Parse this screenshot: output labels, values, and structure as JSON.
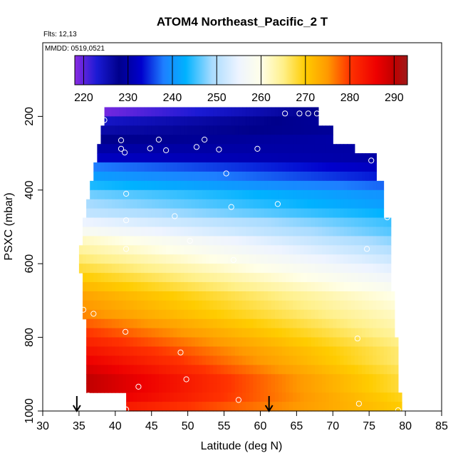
{
  "title": "ATOM4 Northeast_Pacific_2 T",
  "flights_label": "Flts: 12,13",
  "date_label": "MMDD: 0519,0521",
  "colorbar": {
    "ticks": [
      220,
      230,
      240,
      250,
      260,
      270,
      280,
      290
    ],
    "tick_labels": [
      "220",
      "230",
      "240",
      "250",
      "260",
      "270",
      "280",
      "290"
    ],
    "range": [
      218,
      293
    ],
    "colors": [
      {
        "v": 218,
        "c": "#8a2be2"
      },
      {
        "v": 223,
        "c": "#1a1ad4"
      },
      {
        "v": 228,
        "c": "#00008b"
      },
      {
        "v": 233,
        "c": "#0000cd"
      },
      {
        "v": 238,
        "c": "#1e7fff"
      },
      {
        "v": 243,
        "c": "#00b2ff"
      },
      {
        "v": 249,
        "c": "#aadcff"
      },
      {
        "v": 255,
        "c": "#eef4ff"
      },
      {
        "v": 260,
        "c": "#ffffe8"
      },
      {
        "v": 265,
        "c": "#fff08a"
      },
      {
        "v": 270,
        "c": "#ffcc00"
      },
      {
        "v": 275,
        "c": "#ff9900"
      },
      {
        "v": 280,
        "c": "#ff3300"
      },
      {
        "v": 286,
        "c": "#ee0000"
      },
      {
        "v": 290,
        "c": "#c00000"
      },
      {
        "v": 293,
        "c": "#9e1a1a"
      }
    ]
  },
  "chart_data": {
    "type": "heatmap",
    "title": "ATOM4 Northeast_Pacific_2 T",
    "xlabel": "Latitude (deg N)",
    "ylabel": "PSXC (mbar)",
    "xlim": [
      30,
      85
    ],
    "ylim": [
      1000,
      0
    ],
    "x_ticks": [
      30,
      35,
      40,
      45,
      50,
      55,
      60,
      65,
      70,
      75,
      80,
      85
    ],
    "x_tick_labels": [
      "30",
      "35",
      "40",
      "45",
      "50",
      "55",
      "60",
      "65",
      "70",
      "75",
      "80",
      "85"
    ],
    "y_ticks": [
      200,
      400,
      600,
      800,
      1000
    ],
    "y_tick_labels": [
      "200",
      "400",
      "600",
      "800",
      "1000"
    ],
    "colorbar_unit": "T",
    "rows": [
      {
        "p": 187.5,
        "lat_min": 38.5,
        "lat_max": 68,
        "t_start": 219,
        "t_end": 228
      },
      {
        "p": 212.5,
        "lat_min": 38.5,
        "lat_max": 68,
        "t_start": 224,
        "t_end": 229
      },
      {
        "p": 237.5,
        "lat_min": 38,
        "lat_max": 70,
        "t_start": 226,
        "t_end": 229
      },
      {
        "p": 262.5,
        "lat_min": 38,
        "lat_max": 70,
        "t_start": 228,
        "t_end": 230
      },
      {
        "p": 287.5,
        "lat_min": 37.5,
        "lat_max": 73,
        "t_start": 230,
        "t_end": 230
      },
      {
        "p": 312.5,
        "lat_min": 37.5,
        "lat_max": 76,
        "t_start": 232,
        "t_end": 230
      },
      {
        "p": 337.5,
        "lat_min": 37,
        "lat_max": 76,
        "t_start": 238,
        "t_end": 232
      },
      {
        "p": 362.5,
        "lat_min": 37,
        "lat_max": 76,
        "t_start": 241,
        "t_end": 234
      },
      {
        "p": 387.5,
        "lat_min": 36.5,
        "lat_max": 77,
        "t_start": 244,
        "t_end": 237
      },
      {
        "p": 412.5,
        "lat_min": 36.5,
        "lat_max": 77,
        "t_start": 247,
        "t_end": 240
      },
      {
        "p": 437.5,
        "lat_min": 36,
        "lat_max": 77,
        "t_start": 249,
        "t_end": 241
      },
      {
        "p": 462.5,
        "lat_min": 36,
        "lat_max": 77,
        "t_start": 251,
        "t_end": 243
      },
      {
        "p": 487.5,
        "lat_min": 35.5,
        "lat_max": 78,
        "t_start": 255,
        "t_end": 245
      },
      {
        "p": 512.5,
        "lat_min": 35.5,
        "lat_max": 78,
        "t_start": 258,
        "t_end": 246
      },
      {
        "p": 537.5,
        "lat_min": 35.5,
        "lat_max": 78,
        "t_start": 262,
        "t_end": 248
      },
      {
        "p": 562.5,
        "lat_min": 35,
        "lat_max": 78,
        "t_start": 264,
        "t_end": 250
      },
      {
        "p": 587.5,
        "lat_min": 35,
        "lat_max": 78,
        "t_start": 266,
        "t_end": 252
      },
      {
        "p": 612.5,
        "lat_min": 35,
        "lat_max": 78,
        "t_start": 268,
        "t_end": 254
      },
      {
        "p": 637.5,
        "lat_min": 35.5,
        "lat_max": 78,
        "t_start": 270,
        "t_end": 256
      },
      {
        "p": 662.5,
        "lat_min": 35.5,
        "lat_max": 78,
        "t_start": 272,
        "t_end": 258
      },
      {
        "p": 687.5,
        "lat_min": 35.5,
        "lat_max": 78.5,
        "t_start": 274,
        "t_end": 260
      },
      {
        "p": 712.5,
        "lat_min": 35.5,
        "lat_max": 78.5,
        "t_start": 275,
        "t_end": 261
      },
      {
        "p": 737.5,
        "lat_min": 35.5,
        "lat_max": 78.5,
        "t_start": 276,
        "t_end": 262
      },
      {
        "p": 762.5,
        "lat_min": 36,
        "lat_max": 78.5,
        "t_start": 278,
        "t_end": 263
      },
      {
        "p": 787.5,
        "lat_min": 36,
        "lat_max": 78.5,
        "t_start": 280,
        "t_end": 264
      },
      {
        "p": 812.5,
        "lat_min": 36,
        "lat_max": 79,
        "t_start": 282,
        "t_end": 265
      },
      {
        "p": 837.5,
        "lat_min": 36,
        "lat_max": 79,
        "t_start": 284,
        "t_end": 266
      },
      {
        "p": 862.5,
        "lat_min": 36,
        "lat_max": 79,
        "t_start": 286,
        "t_end": 266
      },
      {
        "p": 887.5,
        "lat_min": 36,
        "lat_max": 79,
        "t_start": 288,
        "t_end": 267
      },
      {
        "p": 912.5,
        "lat_min": 36,
        "lat_max": 79,
        "t_start": 290,
        "t_end": 268
      },
      {
        "p": 937.5,
        "lat_min": 36,
        "lat_max": 79,
        "t_start": 290,
        "t_end": 268
      },
      {
        "p": 962.5,
        "lat_min": 41.5,
        "lat_max": 79.5,
        "t_start": 286,
        "t_end": 269
      },
      {
        "p": 987.5,
        "lat_min": 41.5,
        "lat_max": 79.5,
        "t_start": 283,
        "t_end": 270
      }
    ],
    "points": [
      {
        "lat": 38.5,
        "p": 210
      },
      {
        "lat": 40.8,
        "p": 265
      },
      {
        "lat": 40.8,
        "p": 288
      },
      {
        "lat": 41.3,
        "p": 298
      },
      {
        "lat": 44.8,
        "p": 287
      },
      {
        "lat": 46.0,
        "p": 263
      },
      {
        "lat": 47.0,
        "p": 292
      },
      {
        "lat": 51.2,
        "p": 283
      },
      {
        "lat": 52.3,
        "p": 263
      },
      {
        "lat": 54.3,
        "p": 290
      },
      {
        "lat": 55.3,
        "p": 355
      },
      {
        "lat": 59.6,
        "p": 288
      },
      {
        "lat": 63.4,
        "p": 192
      },
      {
        "lat": 65.4,
        "p": 192
      },
      {
        "lat": 66.6,
        "p": 192
      },
      {
        "lat": 67.8,
        "p": 192
      },
      {
        "lat": 75.3,
        "p": 320
      },
      {
        "lat": 41.5,
        "p": 410
      },
      {
        "lat": 56.0,
        "p": 446
      },
      {
        "lat": 62.4,
        "p": 438
      },
      {
        "lat": 48.2,
        "p": 471
      },
      {
        "lat": 77.5,
        "p": 474
      },
      {
        "lat": 41.5,
        "p": 482
      },
      {
        "lat": 50.3,
        "p": 538
      },
      {
        "lat": 74.7,
        "p": 560
      },
      {
        "lat": 41.5,
        "p": 560
      },
      {
        "lat": 56.3,
        "p": 590
      },
      {
        "lat": 35.6,
        "p": 725
      },
      {
        "lat": 37.0,
        "p": 736
      },
      {
        "lat": 41.4,
        "p": 785
      },
      {
        "lat": 73.4,
        "p": 803
      },
      {
        "lat": 49.0,
        "p": 841
      },
      {
        "lat": 49.8,
        "p": 914
      },
      {
        "lat": 43.2,
        "p": 934
      },
      {
        "lat": 36.3,
        "p": 958
      },
      {
        "lat": 57.0,
        "p": 970
      },
      {
        "lat": 73.6,
        "p": 980
      },
      {
        "lat": 41.5,
        "p": 996
      },
      {
        "lat": 79.0,
        "p": 998
      }
    ],
    "arrows": [
      {
        "lat": 34.7,
        "p": 1000
      },
      {
        "lat": 61.2,
        "p": 1000
      }
    ]
  }
}
